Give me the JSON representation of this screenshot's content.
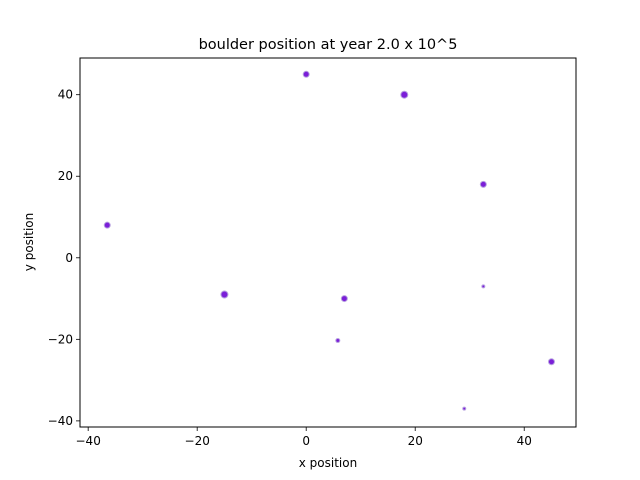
{
  "chart_data": {
    "type": "scatter",
    "title": "boulder position at year 2.0 x 10^5",
    "xlabel": "x position",
    "ylabel": "y position",
    "xlim": [
      -41.5,
      49.5
    ],
    "ylim": [
      -41.5,
      49.0
    ],
    "xticks": [
      -40,
      -20,
      0,
      20,
      40
    ],
    "yticks": [
      -40,
      -20,
      0,
      20,
      40
    ],
    "grid": false,
    "marker_color": "#7b1fd8",
    "marker_edge_color": "#b8a3e0",
    "points": [
      {
        "x": 0.0,
        "y": 45.0,
        "size": 3
      },
      {
        "x": 18.0,
        "y": 40.0,
        "size": 3.5
      },
      {
        "x": 32.5,
        "y": 18.0,
        "size": 3
      },
      {
        "x": -36.5,
        "y": 8.0,
        "size": 3
      },
      {
        "x": -15.0,
        "y": -9.0,
        "size": 3.5
      },
      {
        "x": 7.0,
        "y": -10.0,
        "size": 3
      },
      {
        "x": 32.5,
        "y": -7.0,
        "size": 1.5
      },
      {
        "x": 5.8,
        "y": -20.3,
        "size": 2
      },
      {
        "x": 45.0,
        "y": -25.5,
        "size": 3
      },
      {
        "x": 29.0,
        "y": -37.0,
        "size": 1.5
      }
    ]
  }
}
